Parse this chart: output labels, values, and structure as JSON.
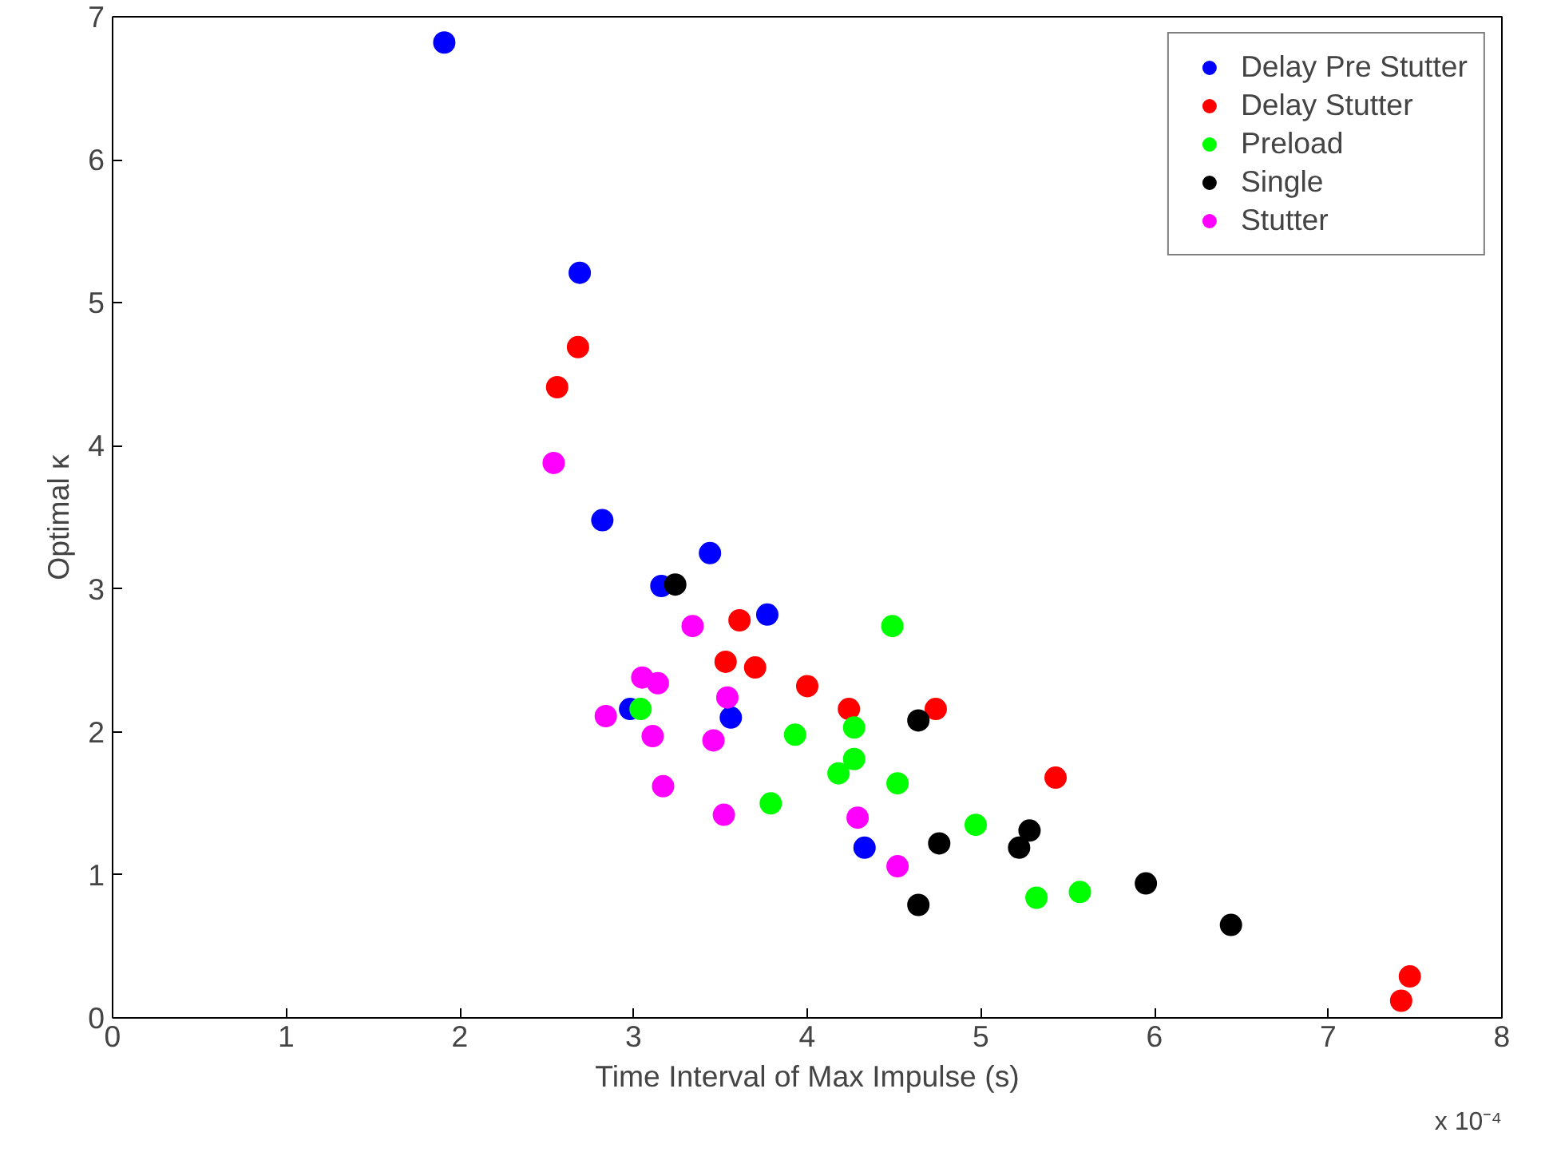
{
  "chart_data": {
    "type": "scatter",
    "xlabel": "Time Interval of Max Impulse (s)",
    "ylabel": "Optimal κ",
    "xlim": [
      0,
      8
    ],
    "ylim": [
      0,
      7
    ],
    "xticks": [
      0,
      1,
      2,
      3,
      4,
      5,
      6,
      7,
      8
    ],
    "yticks": [
      0,
      1,
      2,
      3,
      4,
      5,
      6,
      7
    ],
    "grid": false,
    "legend": "top right",
    "marker": "circle",
    "annotations": [
      "x 10⁻⁴"
    ],
    "series": [
      {
        "name": "Delay Pre Stutter",
        "color": "#0000ff",
        "x": [
          1.91,
          2.69,
          2.82,
          3.44,
          3.16,
          3.77,
          2.98,
          3.56,
          3.79,
          4.33
        ],
        "values": [
          6.82,
          5.21,
          3.48,
          3.25,
          3.02,
          2.82,
          2.16,
          2.1,
          null,
          1.19
        ]
      },
      {
        "name": "Delay Stutter",
        "color": "#ff0000",
        "x": [
          2.68,
          2.56,
          3.61,
          3.53,
          3.7,
          4.0,
          4.24,
          4.74,
          5.43,
          7.47,
          7.42
        ],
        "values": [
          4.69,
          4.41,
          2.78,
          2.49,
          2.45,
          2.32,
          2.16,
          2.16,
          1.68,
          0.29,
          0.12
        ]
      },
      {
        "name": "Preload",
        "color": "#00ff00",
        "x": [
          4.49,
          3.04,
          4.27,
          3.93,
          4.27,
          4.18,
          4.52,
          3.79,
          4.97,
          5.32,
          5.57
        ],
        "values": [
          2.74,
          2.16,
          2.03,
          1.98,
          1.81,
          1.71,
          1.64,
          1.5,
          1.35,
          0.84,
          0.88
        ]
      },
      {
        "name": "Single",
        "color": "#000000",
        "x": [
          3.24,
          4.64,
          4.76,
          5.28,
          5.22,
          4.64,
          5.95,
          6.44
        ],
        "values": [
          3.03,
          2.08,
          1.22,
          1.31,
          1.19,
          0.79,
          0.94,
          0.65
        ]
      },
      {
        "name": "Stutter",
        "color": "#ff00ff",
        "x": [
          2.54,
          3.34,
          3.05,
          3.14,
          3.54,
          2.84,
          3.11,
          3.46,
          3.17,
          3.52,
          4.29,
          4.52
        ],
        "values": [
          3.88,
          2.74,
          2.38,
          2.34,
          2.24,
          2.11,
          1.97,
          1.94,
          1.62,
          1.42,
          1.4,
          1.06
        ]
      }
    ]
  }
}
